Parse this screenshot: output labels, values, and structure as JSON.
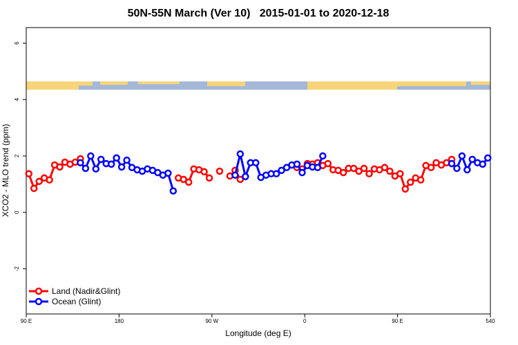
{
  "chart_data": {
    "type": "line",
    "title": "50N-55N March (Ver 10)   2015-01-01 to 2020-12-18",
    "xlabel": "Longitude (deg E)",
    "ylabel": "XCO2 - MLO trend (ppm)",
    "x": [
      92.5,
      97.5,
      102.5,
      107.5,
      112.5,
      117.5,
      122.5,
      127.5,
      132.5,
      137.5,
      142.5,
      147.5,
      152.5,
      157.5,
      162.5,
      167.5,
      172.5,
      177.5,
      182.5,
      187.5,
      192.5,
      197.5,
      202.5,
      207.5,
      212.5,
      217.5,
      222.5,
      227.5,
      232.5,
      237.5,
      242.5,
      247.5,
      252.5,
      257.5,
      262.5,
      267.5,
      272.5,
      277.5,
      282.5,
      287.5,
      292.5,
      297.5,
      302.5,
      307.5,
      312.5,
      317.5,
      322.5,
      327.5,
      332.5,
      337.5,
      342.5,
      347.5,
      352.5,
      357.5,
      362.5,
      367.5,
      372.5,
      377.5,
      382.5,
      387.5,
      392.5,
      397.5,
      402.5,
      407.5,
      412.5,
      417.5,
      422.5,
      427.5,
      432.5,
      437.5,
      442.5,
      447.5,
      452.5,
      457.5,
      462.5,
      467.5,
      472.5,
      477.5,
      482.5,
      487.5,
      492.5,
      497.5,
      502.5,
      507.5,
      512.5,
      517.5,
      522.5,
      527.5,
      532.5,
      537.5
    ],
    "series": [
      {
        "name": "Land (Nadir&Glint)",
        "color": "#ff0000",
        "values": [
          1.37,
          0.85,
          1.1,
          1.22,
          1.15,
          1.68,
          1.61,
          1.78,
          1.71,
          1.78,
          1.9,
          null,
          null,
          null,
          null,
          null,
          null,
          null,
          null,
          null,
          null,
          null,
          null,
          null,
          null,
          null,
          null,
          null,
          null,
          1.22,
          1.17,
          1.07,
          1.54,
          1.51,
          1.44,
          1.22,
          null,
          1.46,
          null,
          1.29,
          1.49,
          1.17,
          null,
          null,
          null,
          null,
          null,
          null,
          null,
          null,
          null,
          null,
          1.59,
          1.54,
          1.73,
          1.71,
          1.76,
          1.66,
          1.73,
          1.51,
          1.49,
          1.41,
          1.56,
          1.56,
          1.46,
          1.56,
          1.37,
          1.54,
          1.51,
          1.59,
          1.46,
          1.29,
          1.37,
          0.83,
          1.07,
          1.22,
          1.15,
          1.66,
          1.59,
          1.76,
          1.68,
          1.76,
          1.88,
          null,
          null,
          null,
          null,
          null,
          null,
          null
        ]
      },
      {
        "name": "Ocean (Glint)",
        "color": "#0000ff",
        "values": [
          null,
          null,
          null,
          null,
          null,
          null,
          null,
          null,
          null,
          null,
          1.76,
          1.56,
          2.0,
          1.54,
          1.88,
          1.73,
          1.71,
          1.93,
          1.61,
          1.85,
          1.59,
          1.51,
          1.46,
          1.54,
          1.49,
          1.41,
          1.32,
          1.39,
          0.76,
          null,
          null,
          null,
          null,
          null,
          null,
          null,
          null,
          null,
          null,
          null,
          1.32,
          2.07,
          1.27,
          1.76,
          1.76,
          1.24,
          1.32,
          1.37,
          1.37,
          1.49,
          1.59,
          1.68,
          1.71,
          1.41,
          1.66,
          1.61,
          1.59,
          2.0,
          null,
          null,
          null,
          null,
          null,
          null,
          null,
          null,
          null,
          null,
          null,
          null,
          null,
          null,
          null,
          null,
          null,
          null,
          null,
          null,
          null,
          null,
          null,
          null,
          1.73,
          1.56,
          2.0,
          1.51,
          1.88,
          1.76,
          1.71,
          1.93
        ]
      }
    ],
    "xlim": [
      90,
      540
    ],
    "xticks": [
      {
        "value": 90,
        "label": "90 E"
      },
      180,
      {
        "value": 270,
        "label": "90 W"
      },
      {
        "value": 360,
        "label": "0"
      },
      {
        "value": 450,
        "label": "90 E"
      },
      540
    ],
    "ylim": [
      -3.6,
      6.55
    ],
    "yticks": [
      -2,
      0,
      2,
      4,
      6
    ],
    "legend": "bottom-left"
  }
}
